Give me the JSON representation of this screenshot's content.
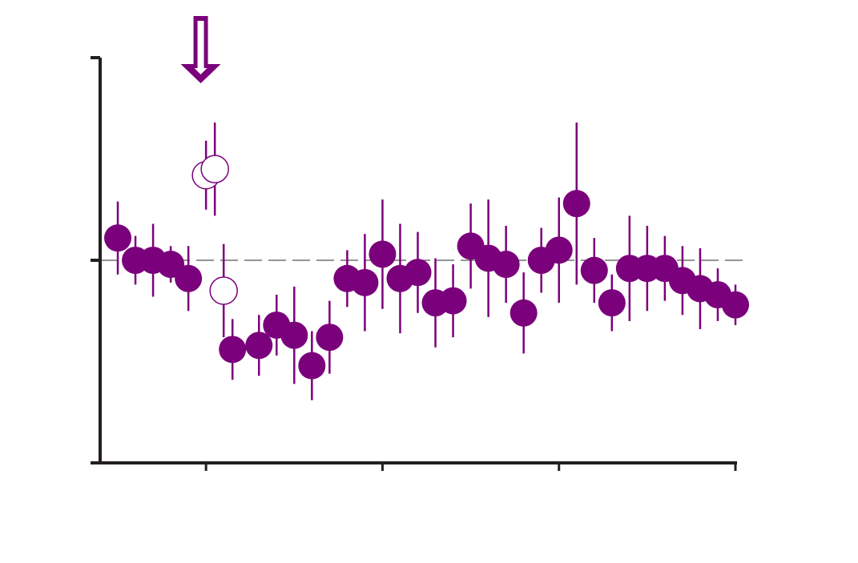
{
  "chart_data": {
    "type": "scatter",
    "title": "",
    "xlabel": "",
    "ylabel": "",
    "xlim": [
      0,
      36
    ],
    "ylim": [
      -1.0,
      1.0
    ],
    "xticks": [
      6,
      16,
      26,
      36
    ],
    "yticks": [
      -1.0,
      0.0,
      1.0
    ],
    "reference_line_y": 0.0,
    "arrow_x": 5.7,
    "colors": {
      "marker": "#7b007b",
      "axis": "#231f20",
      "reference_line": "#555555"
    },
    "series": [
      {
        "marker": "filled",
        "points": [
          {
            "x": 1.0,
            "y": 0.11,
            "err": 0.18
          },
          {
            "x": 2.0,
            "y": 0.0,
            "err": 0.12
          },
          {
            "x": 3.0,
            "y": 0.0,
            "err": 0.18
          },
          {
            "x": 4.0,
            "y": -0.02,
            "err": 0.09
          },
          {
            "x": 5.0,
            "y": -0.09,
            "err": 0.16
          },
          {
            "x": 7.5,
            "y": -0.44,
            "err": 0.15
          },
          {
            "x": 9.0,
            "y": -0.42,
            "err": 0.15
          },
          {
            "x": 10.0,
            "y": -0.32,
            "err": 0.15
          },
          {
            "x": 11.0,
            "y": -0.37,
            "err": 0.24
          },
          {
            "x": 12.0,
            "y": -0.52,
            "err": 0.17
          },
          {
            "x": 13.0,
            "y": -0.38,
            "err": 0.18
          },
          {
            "x": 14.0,
            "y": -0.09,
            "err": 0.14
          },
          {
            "x": 15.0,
            "y": -0.11,
            "err": 0.24
          },
          {
            "x": 16.0,
            "y": 0.03,
            "err": 0.27
          },
          {
            "x": 17.0,
            "y": -0.09,
            "err": 0.27
          },
          {
            "x": 18.0,
            "y": -0.06,
            "err": 0.2
          },
          {
            "x": 19.0,
            "y": -0.21,
            "err": 0.22
          },
          {
            "x": 20.0,
            "y": -0.2,
            "err": 0.18
          },
          {
            "x": 21.0,
            "y": 0.07,
            "err": 0.21
          },
          {
            "x": 22.0,
            "y": 0.01,
            "err": 0.29
          },
          {
            "x": 23.0,
            "y": -0.02,
            "err": 0.19
          },
          {
            "x": 24.0,
            "y": -0.26,
            "err": 0.2
          },
          {
            "x": 25.0,
            "y": 0.0,
            "err": 0.16
          },
          {
            "x": 26.0,
            "y": 0.05,
            "err": 0.26
          },
          {
            "x": 27.0,
            "y": 0.28,
            "err": 0.4
          },
          {
            "x": 28.0,
            "y": -0.05,
            "err": 0.16
          },
          {
            "x": 29.0,
            "y": -0.21,
            "err": 0.14
          },
          {
            "x": 30.0,
            "y": -0.04,
            "err": 0.26
          },
          {
            "x": 31.0,
            "y": -0.04,
            "err": 0.21
          },
          {
            "x": 32.0,
            "y": -0.04,
            "err": 0.16
          },
          {
            "x": 33.0,
            "y": -0.1,
            "err": 0.17
          },
          {
            "x": 34.0,
            "y": -0.14,
            "err": 0.2
          },
          {
            "x": 35.0,
            "y": -0.17,
            "err": 0.13
          },
          {
            "x": 36.0,
            "y": -0.22,
            "err": 0.1
          }
        ]
      },
      {
        "marker": "open",
        "points": [
          {
            "x": 6.0,
            "y": 0.42,
            "err": 0.17
          },
          {
            "x": 6.5,
            "y": 0.45,
            "err": 0.23
          },
          {
            "x": 7.0,
            "y": -0.15,
            "err": 0.23
          }
        ]
      }
    ]
  }
}
